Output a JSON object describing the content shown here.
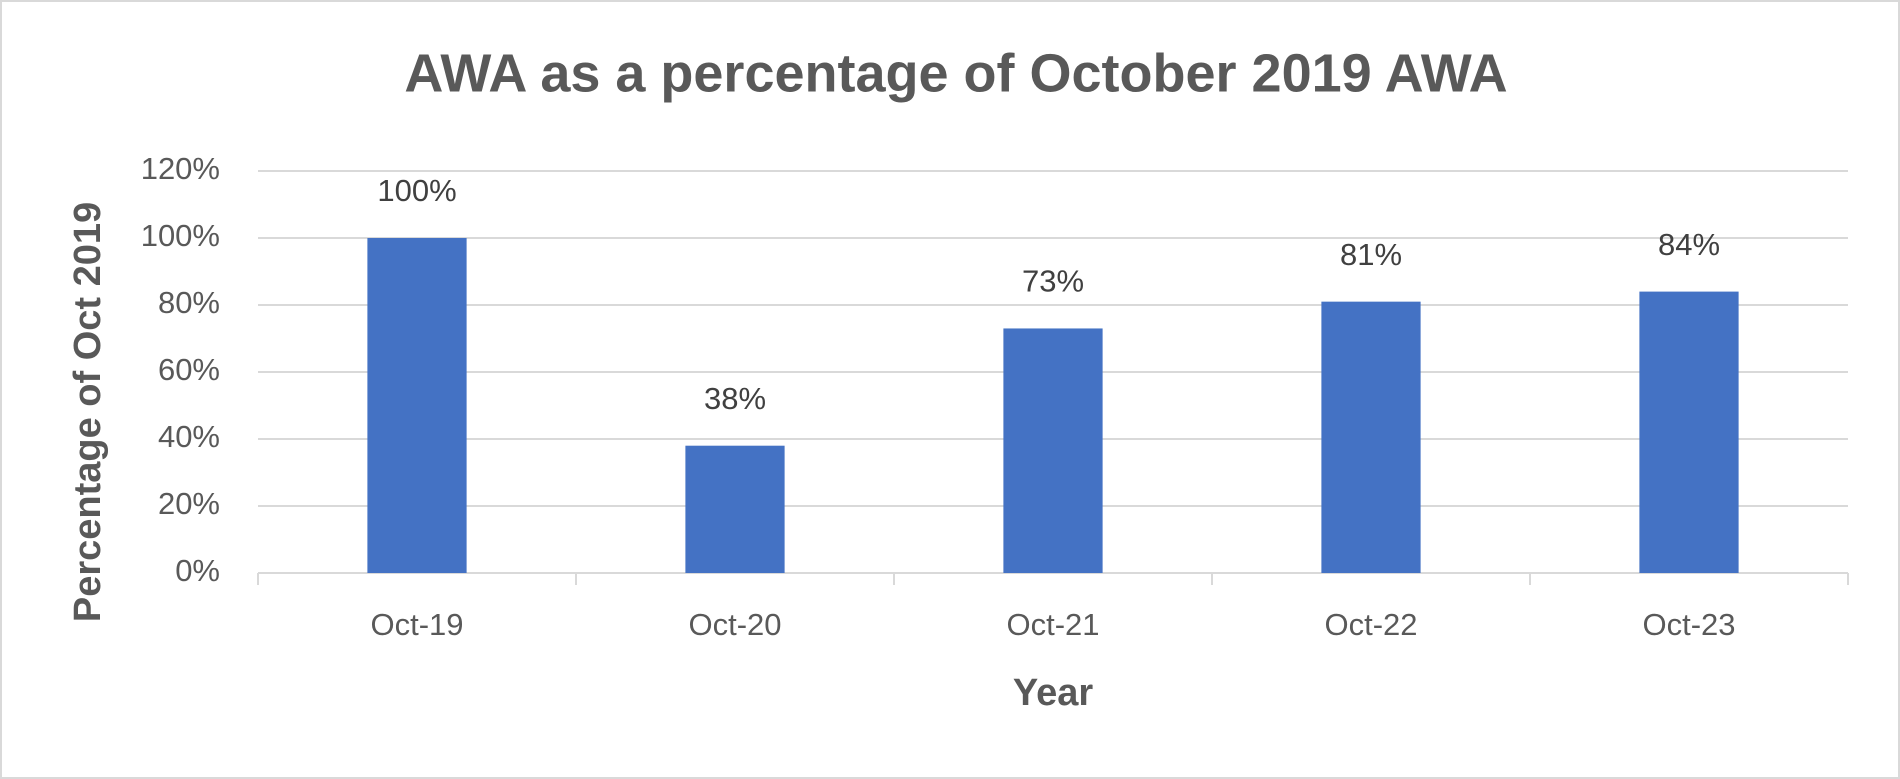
{
  "chart_data": {
    "type": "bar",
    "title": "AWA as a percentage of October 2019 AWA",
    "x_label": "Year",
    "y_label": "Percentage of Oct  2019",
    "categories": [
      "Oct-19",
      "Oct-20",
      "Oct-21",
      "Oct-22",
      "Oct-23"
    ],
    "values": [
      100,
      38,
      73,
      81,
      84
    ],
    "value_labels": [
      "100%",
      "38%",
      "73%",
      "81%",
      "84%"
    ],
    "color": "#4472c4",
    "ylim": [
      0,
      120
    ],
    "yticks": [
      {
        "value": 0,
        "label": "0%"
      },
      {
        "value": 20,
        "label": "20%"
      },
      {
        "value": 40,
        "label": "40%"
      },
      {
        "value": 60,
        "label": "60%"
      },
      {
        "value": 80,
        "label": "80%"
      },
      {
        "value": 100,
        "label": "100%"
      },
      {
        "value": 120,
        "label": "120%"
      }
    ],
    "grid": true
  }
}
